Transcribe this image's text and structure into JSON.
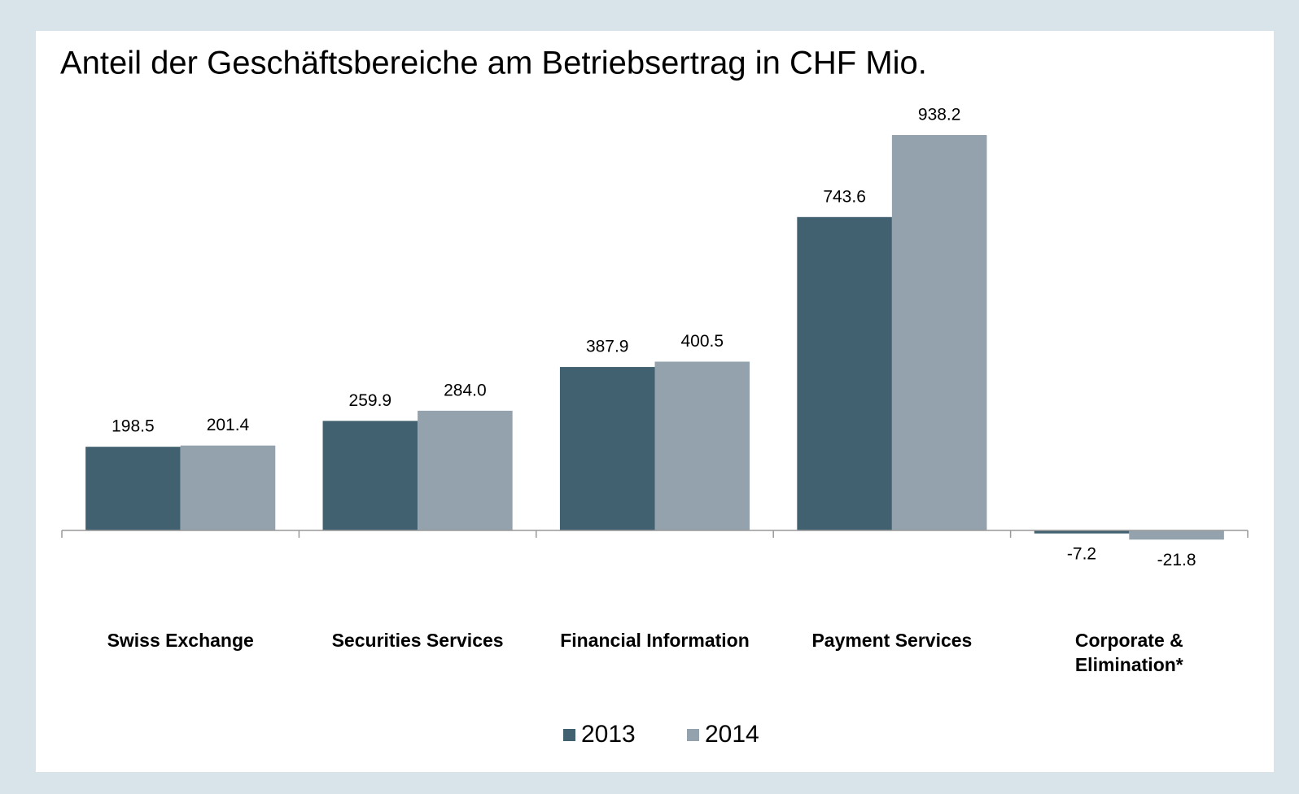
{
  "chart_data": {
    "type": "bar",
    "title": "Anteil der Geschäftsbereiche am Betriebsertrag in CHF Mio.",
    "categories": [
      "Swiss Exchange",
      "Securities Services",
      "Financial Information",
      "Payment Services",
      "Corporate &\nElimination*"
    ],
    "series": [
      {
        "name": "2013",
        "color": "#416170",
        "values": [
          198.5,
          259.9,
          387.9,
          743.6,
          -7.2
        ],
        "value_labels": [
          "198.5",
          "259.9",
          "387.9",
          "743.6",
          "-7.2"
        ]
      },
      {
        "name": "2014",
        "color": "#93a2ac",
        "values": [
          201.4,
          284.0,
          400.5,
          938.2,
          -21.8
        ],
        "value_labels": [
          "201.4",
          "284.0",
          "400.5",
          "938.2",
          "-21.8"
        ]
      }
    ],
    "legend": "bottom"
  }
}
